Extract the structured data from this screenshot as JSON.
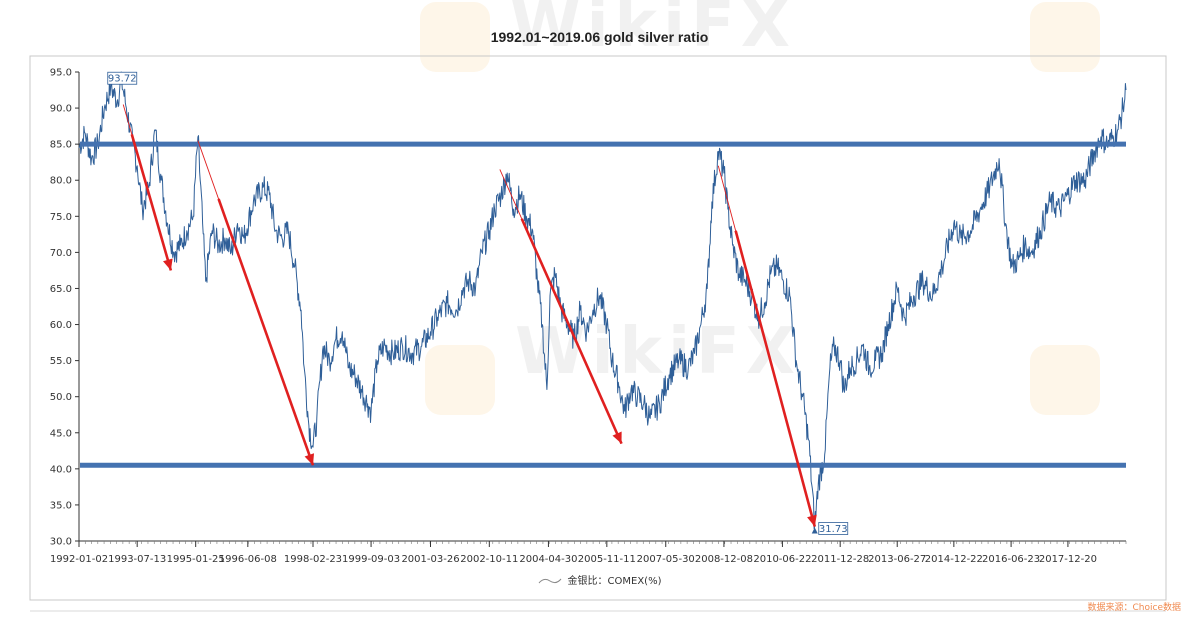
{
  "watermark_text": "WikiFX",
  "source_note": "数据来源：Choice数据",
  "colors": {
    "line": "#2f5f98",
    "band": "#4472b0",
    "arrow": "#e02020",
    "axis": "#333333"
  },
  "chart_data": {
    "type": "line",
    "title": "1992.01~2019.06 gold silver ratio",
    "xlabel": "",
    "ylabel": "",
    "ylim": [
      30,
      95
    ],
    "yticks": [
      "95.0",
      "90.0",
      "85.0",
      "80.0",
      "75.0",
      "70.0",
      "65.0",
      "60.0",
      "55.0",
      "50.0",
      "45.0",
      "40.0",
      "35.0",
      "30.0"
    ],
    "xlim": [
      "1992-01-02",
      "2019-06-30"
    ],
    "xticks": [
      "1992-01-02",
      "1993-07-13",
      "1995-01-25",
      "1996-06-08",
      "1998-02-23",
      "1999-09-03",
      "2001-03-26",
      "2002-10-11",
      "2004-04-30",
      "2005-11-11",
      "2007-05-30",
      "2008-12-08",
      "2010-06-22",
      "2011-12-28",
      "2013-06-27",
      "2014-12-22",
      "2016-06-23",
      "2017-12-20"
    ],
    "legend": {
      "label": "金银比：COMEX(%)",
      "position": "bottom-center"
    },
    "grid": false,
    "series": [
      {
        "name": "金银比：COMEX(%)",
        "points": [
          [
            "1992-01-02",
            84.5
          ],
          [
            "1992-03-01",
            86.5
          ],
          [
            "1992-05-01",
            83
          ],
          [
            "1992-07-01",
            85
          ],
          [
            "1992-09-01",
            90
          ],
          [
            "1992-11-01",
            93
          ],
          [
            "1993-01-01",
            91
          ],
          [
            "1993-02-15",
            93.7
          ],
          [
            "1993-04-01",
            90
          ],
          [
            "1993-06-01",
            85
          ],
          [
            "1993-07-13",
            82
          ],
          [
            "1993-09-01",
            76
          ],
          [
            "1993-11-01",
            79
          ],
          [
            "1994-01-01",
            87
          ],
          [
            "1994-03-01",
            80
          ],
          [
            "1994-05-01",
            74
          ],
          [
            "1994-07-01",
            70
          ],
          [
            "1994-09-01",
            71
          ],
          [
            "1994-11-01",
            73
          ],
          [
            "1995-01-01",
            75
          ],
          [
            "1995-02-15",
            86
          ],
          [
            "1995-04-01",
            74
          ],
          [
            "1995-05-01",
            66
          ],
          [
            "1995-07-01",
            73
          ],
          [
            "1995-09-01",
            71
          ],
          [
            "1995-11-01",
            72
          ],
          [
            "1996-01-01",
            70
          ],
          [
            "1996-03-01",
            74
          ],
          [
            "1996-05-01",
            72
          ],
          [
            "1996-08-01",
            77
          ],
          [
            "1996-11-01",
            79
          ],
          [
            "1997-01-01",
            78
          ],
          [
            "1997-03-01",
            73
          ],
          [
            "1997-05-01",
            72
          ],
          [
            "1997-07-01",
            73
          ],
          [
            "1997-09-01",
            68
          ],
          [
            "1997-11-01",
            62
          ],
          [
            "1997-12-01",
            54
          ],
          [
            "1998-01-15",
            46
          ],
          [
            "1998-02-23",
            43
          ],
          [
            "1998-04-01",
            47
          ],
          [
            "1998-06-01",
            57
          ],
          [
            "1998-08-01",
            55
          ],
          [
            "1998-10-01",
            58
          ],
          [
            "1998-12-01",
            59
          ],
          [
            "1999-02-01",
            54
          ],
          [
            "1999-04-01",
            53
          ],
          [
            "1999-06-01",
            51
          ],
          [
            "1999-08-01",
            49
          ],
          [
            "1999-09-03",
            48
          ],
          [
            "1999-11-01",
            55
          ],
          [
            "2000-01-01",
            57
          ],
          [
            "2000-04-01",
            56
          ],
          [
            "2000-07-01",
            57
          ],
          [
            "2000-10-01",
            56
          ],
          [
            "2001-01-01",
            57
          ],
          [
            "2001-03-26",
            59
          ],
          [
            "2001-06-01",
            61
          ],
          [
            "2001-09-01",
            63
          ],
          [
            "2001-12-01",
            62
          ],
          [
            "2002-02-01",
            65
          ],
          [
            "2002-04-01",
            66
          ],
          [
            "2002-06-01",
            65
          ],
          [
            "2002-08-01",
            70
          ],
          [
            "2002-10-11",
            73
          ],
          [
            "2002-12-01",
            76
          ],
          [
            "2003-02-01",
            78
          ],
          [
            "2003-04-01",
            81
          ],
          [
            "2003-06-01",
            76
          ],
          [
            "2003-08-01",
            78
          ],
          [
            "2003-10-01",
            75
          ],
          [
            "2003-12-01",
            73
          ],
          [
            "2004-01-15",
            66
          ],
          [
            "2004-03-01",
            60
          ],
          [
            "2004-04-15",
            51
          ],
          [
            "2004-05-15",
            64
          ],
          [
            "2004-07-01",
            67
          ],
          [
            "2004-09-01",
            62
          ],
          [
            "2004-11-01",
            60
          ],
          [
            "2005-01-01",
            58
          ],
          [
            "2005-03-01",
            62
          ],
          [
            "2005-05-01",
            59
          ],
          [
            "2005-07-01",
            62
          ],
          [
            "2005-09-01",
            64
          ],
          [
            "2005-11-11",
            60
          ],
          [
            "2006-01-01",
            55
          ],
          [
            "2006-03-01",
            52
          ],
          [
            "2006-05-01",
            48
          ],
          [
            "2006-07-01",
            51
          ],
          [
            "2006-09-01",
            50
          ],
          [
            "2006-11-01",
            49
          ],
          [
            "2007-01-01",
            47
          ],
          [
            "2007-04-01",
            49
          ],
          [
            "2007-07-01",
            53
          ],
          [
            "2007-10-01",
            55
          ],
          [
            "2008-01-01",
            54
          ],
          [
            "2008-03-01",
            56
          ],
          [
            "2008-05-01",
            60
          ],
          [
            "2008-07-01",
            65
          ],
          [
            "2008-08-15",
            77
          ],
          [
            "2008-10-15",
            84
          ],
          [
            "2008-12-08",
            81
          ],
          [
            "2009-01-15",
            76
          ],
          [
            "2009-03-01",
            71
          ],
          [
            "2009-05-01",
            67
          ],
          [
            "2009-07-01",
            66
          ],
          [
            "2009-09-01",
            64
          ],
          [
            "2009-11-01",
            61
          ],
          [
            "2010-01-01",
            63
          ],
          [
            "2010-03-01",
            67
          ],
          [
            "2010-05-01",
            68
          ],
          [
            "2010-07-01",
            66
          ],
          [
            "2010-09-01",
            64
          ],
          [
            "2010-11-01",
            55
          ],
          [
            "2011-01-01",
            50
          ],
          [
            "2011-03-01",
            44
          ],
          [
            "2011-04-28",
            32
          ],
          [
            "2011-06-01",
            38
          ],
          [
            "2011-08-01",
            42
          ],
          [
            "2011-09-20",
            54
          ],
          [
            "2011-11-01",
            57
          ],
          [
            "2011-12-28",
            55
          ],
          [
            "2012-02-01",
            51
          ],
          [
            "2012-04-01",
            54
          ],
          [
            "2012-06-01",
            55
          ],
          [
            "2012-08-01",
            57
          ],
          [
            "2012-10-01",
            54
          ],
          [
            "2012-12-01",
            55
          ],
          [
            "2013-02-01",
            56
          ],
          [
            "2013-04-01",
            60
          ],
          [
            "2013-06-27",
            65
          ],
          [
            "2013-09-01",
            61
          ],
          [
            "2013-12-01",
            64
          ],
          [
            "2014-03-01",
            66
          ],
          [
            "2014-06-01",
            64
          ],
          [
            "2014-09-01",
            68
          ],
          [
            "2014-12-22",
            74
          ],
          [
            "2015-03-01",
            72
          ],
          [
            "2015-06-01",
            73
          ],
          [
            "2015-09-01",
            76
          ],
          [
            "2015-12-01",
            79
          ],
          [
            "2016-02-29",
            83
          ],
          [
            "2016-05-01",
            74
          ],
          [
            "2016-07-01",
            68
          ],
          [
            "2016-09-01",
            69
          ],
          [
            "2016-11-01",
            71
          ],
          [
            "2017-01-01",
            70
          ],
          [
            "2017-04-01",
            73
          ],
          [
            "2017-07-01",
            77
          ],
          [
            "2017-10-01",
            76
          ],
          [
            "2017-12-20",
            78
          ],
          [
            "2018-03-01",
            80
          ],
          [
            "2018-06-01",
            80
          ],
          [
            "2018-09-01",
            84
          ],
          [
            "2018-11-01",
            86
          ],
          [
            "2019-01-01",
            85
          ],
          [
            "2019-03-01",
            86
          ],
          [
            "2019-04-15",
            87
          ],
          [
            "2019-06-01",
            90
          ],
          [
            "2019-06-30",
            92.5
          ]
        ]
      }
    ],
    "annotations": {
      "max_label": {
        "text": "93.72",
        "x": "1993-02-15",
        "y": 93.72
      },
      "min_label": {
        "text": "31.73",
        "x": "2011-04-28",
        "y": 31.73
      },
      "reference_lines": [
        85,
        40.5
      ],
      "arrows": [
        {
          "from": [
            "1993-03-01",
            90.5
          ],
          "to": [
            "1994-06-01",
            67.5
          ],
          "thick": true
        },
        {
          "from": [
            "1995-02-15",
            85.5
          ],
          "to": [
            "1998-02-23",
            40.5
          ],
          "thick": true
        },
        {
          "from": [
            "2003-01-20",
            81.5
          ],
          "to": [
            "2006-04-01",
            43.5
          ],
          "thick": true
        },
        {
          "from": [
            "2008-10-15",
            82.0
          ],
          "to": [
            "2011-04-28",
            32.0
          ],
          "thick": true
        }
      ]
    }
  }
}
